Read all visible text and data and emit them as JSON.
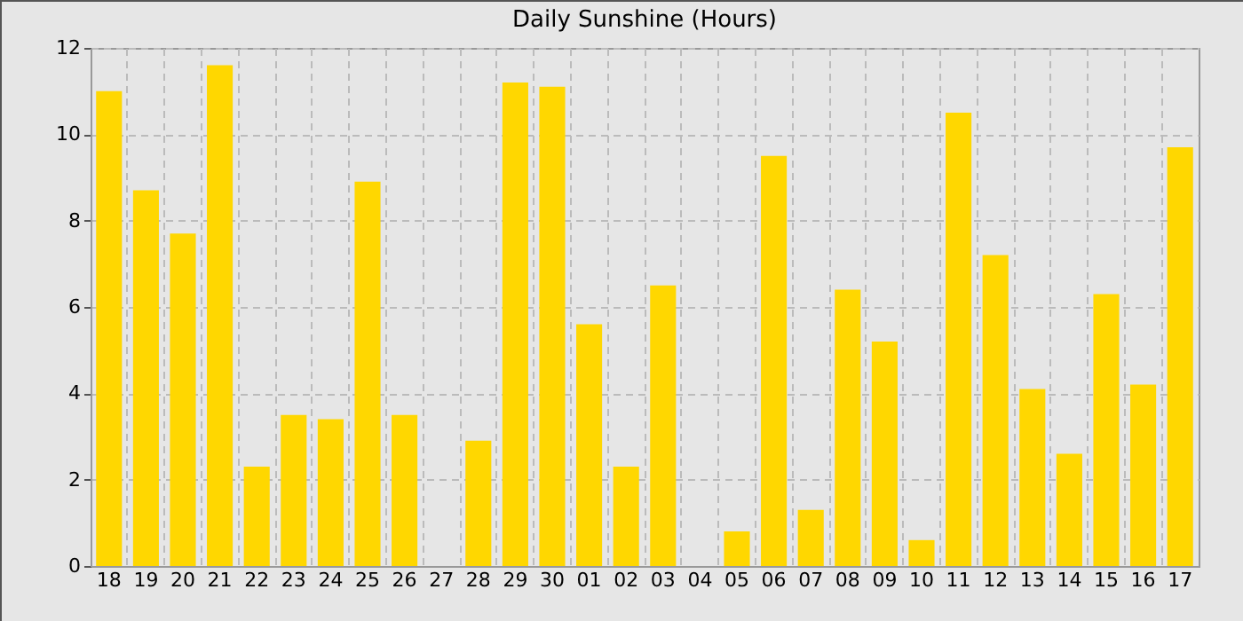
{
  "chart_data": {
    "type": "bar",
    "title": "Daily Sunshine (Hours)",
    "categories": [
      "18",
      "19",
      "20",
      "21",
      "22",
      "23",
      "24",
      "25",
      "26",
      "27",
      "28",
      "29",
      "30",
      "01",
      "02",
      "03",
      "04",
      "05",
      "06",
      "07",
      "08",
      "09",
      "10",
      "11",
      "12",
      "13",
      "14",
      "15",
      "16",
      "17"
    ],
    "values": [
      11.0,
      8.7,
      7.7,
      11.6,
      2.3,
      3.5,
      3.4,
      8.9,
      3.5,
      0,
      2.9,
      11.2,
      11.1,
      5.6,
      2.3,
      6.5,
      0,
      0.8,
      9.5,
      1.3,
      6.4,
      5.2,
      0.6,
      10.5,
      7.2,
      4.1,
      2.6,
      6.3,
      4.2,
      9.7
    ],
    "color": "#ffd700",
    "ylim": [
      0,
      12
    ],
    "yticks": [
      0,
      2,
      4,
      6,
      8,
      10,
      12
    ],
    "grid": true
  }
}
